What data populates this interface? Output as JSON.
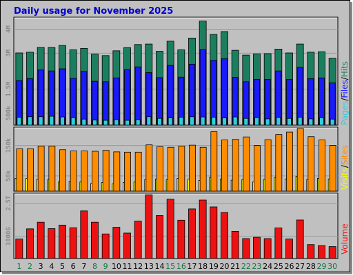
{
  "title": "Daily usage for November 2025",
  "colors": {
    "title": "#0000cc",
    "hits": "#1b7f5f",
    "files": "#1a1aff",
    "pages": "#33ccdd",
    "sites": "#ff8c00",
    "visits": "#ffff00",
    "volume": "#ee1111",
    "weekend": "#117744",
    "panel_bg": "#c0c0c0",
    "grid": "#999999"
  },
  "legend": {
    "top": {
      "hits": "Hits",
      "files": "Files",
      "pages": "Pages",
      "sep": "/"
    },
    "middle": {
      "sites": "Sites",
      "visits": "Visits",
      "sep": "/"
    },
    "bottom": {
      "volume": "Volume"
    }
  },
  "chart_data": [
    {
      "type": "bar",
      "panel": "hits-files-pages",
      "x": [
        1,
        2,
        3,
        4,
        5,
        6,
        7,
        8,
        9,
        10,
        11,
        12,
        13,
        14,
        15,
        16,
        17,
        18,
        19,
        20,
        21,
        22,
        23,
        24,
        25,
        26,
        27,
        28,
        29,
        30
      ],
      "weekend_days": [
        1,
        2,
        8,
        9,
        15,
        16,
        22,
        23,
        29,
        30
      ],
      "ylim": [
        0,
        4500000
      ],
      "yticks": [
        {
          "value": 500000,
          "label": "500k"
        },
        {
          "value": 1500000,
          "label": "1.5M"
        },
        {
          "value": 3000000,
          "label": "3M"
        },
        {
          "value": 4000000,
          "label": "4M"
        }
      ],
      "series": [
        {
          "name": "Hits",
          "values": [
            3010000,
            3040000,
            3240000,
            3240000,
            3320000,
            3140000,
            3200000,
            2960000,
            2900000,
            3100000,
            3230000,
            3360000,
            3380000,
            3080000,
            3500000,
            3140000,
            3630000,
            4340000,
            3780000,
            3900000,
            3120000,
            2920000,
            2970000,
            2980000,
            3170000,
            3010000,
            3380000,
            3040000,
            3060000,
            2790000
          ]
        },
        {
          "name": "Files",
          "values": [
            1860000,
            1940000,
            2300000,
            2260000,
            2350000,
            1950000,
            2240000,
            1830000,
            1810000,
            1970000,
            2310000,
            2430000,
            2190000,
            1980000,
            2490000,
            2000000,
            2540000,
            3150000,
            2700000,
            2770000,
            1990000,
            1810000,
            1910000,
            1910000,
            2260000,
            1910000,
            2410000,
            1940000,
            1970000,
            1760000
          ]
        },
        {
          "name": "Pages",
          "values": [
            330000,
            350000,
            350000,
            370000,
            340000,
            310000,
            250000,
            210000,
            200000,
            230000,
            200000,
            230000,
            350000,
            280000,
            300000,
            330000,
            350000,
            340000,
            330000,
            300000,
            340000,
            280000,
            310000,
            260000,
            320000,
            280000,
            330000,
            260000,
            310000,
            250000
          ]
        }
      ]
    },
    {
      "type": "bar",
      "panel": "sites-visits",
      "x": [
        1,
        2,
        3,
        4,
        5,
        6,
        7,
        8,
        9,
        10,
        11,
        12,
        13,
        14,
        15,
        16,
        17,
        18,
        19,
        20,
        21,
        22,
        23,
        24,
        25,
        26,
        27,
        28,
        29,
        30
      ],
      "weekend_days": [
        1,
        2,
        8,
        9,
        15,
        16,
        22,
        23,
        29,
        30
      ],
      "ylim": [
        0,
        210000
      ],
      "yticks": [
        {
          "value": 50000,
          "label": "50k"
        },
        {
          "value": 150000,
          "label": "150k"
        }
      ],
      "series": [
        {
          "name": "Sites",
          "values": [
            139000,
            139000,
            148000,
            148000,
            136000,
            132000,
            132000,
            131000,
            134000,
            129000,
            128000,
            128000,
            152000,
            146000,
            144000,
            148000,
            151000,
            144000,
            195000,
            168000,
            170000,
            178000,
            150000,
            169000,
            186000,
            194000,
            206000,
            179000,
            168000,
            150000
          ]
        },
        {
          "name": "Visits",
          "values": [
            42000,
            42000,
            39000,
            37000,
            30000,
            32000,
            30000,
            25000,
            28000,
            24000,
            28000,
            30000,
            38000,
            40000,
            38000,
            42000,
            40000,
            35000,
            45000,
            40000,
            36000,
            38000,
            30000,
            38000,
            44000,
            40000,
            48000,
            38000,
            42000,
            40000
          ]
        }
      ]
    },
    {
      "type": "bar",
      "panel": "volume",
      "x": [
        1,
        2,
        3,
        4,
        5,
        6,
        7,
        8,
        9,
        10,
        11,
        12,
        13,
        14,
        15,
        16,
        17,
        18,
        19,
        20,
        21,
        22,
        23,
        24,
        25,
        26,
        27,
        28,
        29,
        30
      ],
      "weekend_days": [
        1,
        2,
        8,
        9,
        15,
        16,
        22,
        23,
        29,
        30
      ],
      "ylim": [
        0,
        2950
      ],
      "yticks": [
        {
          "value": 1000,
          "label": "1000G"
        },
        {
          "value": 2500,
          "label": "2.5T"
        }
      ],
      "series": [
        {
          "name": "Volume",
          "values": [
            880,
            1340,
            1640,
            1350,
            1510,
            1390,
            2150,
            1640,
            1110,
            1410,
            1150,
            1690,
            2880,
            1940,
            2680,
            1730,
            2240,
            2640,
            2330,
            2080,
            1230,
            900,
            960,
            900,
            1380,
            880,
            1740,
            630,
            580,
            540
          ]
        }
      ]
    }
  ]
}
